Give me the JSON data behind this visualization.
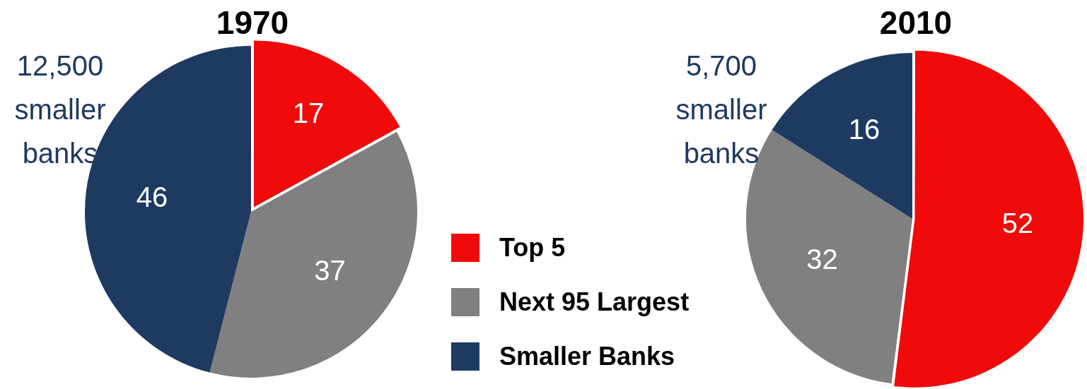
{
  "chart_data": [
    {
      "type": "pie",
      "title": "1970",
      "categories": [
        "Top 5",
        "Next 95 Largest",
        "Smaller Banks"
      ],
      "values": [
        17,
        37,
        46
      ],
      "colors": [
        "#f00a0a",
        "#808080",
        "#1f3a60"
      ],
      "data_labels": true,
      "legend": "right",
      "annotations": [
        "12,500 smaller banks"
      ]
    },
    {
      "type": "pie",
      "title": "2010",
      "categories": [
        null,
        null,
        null
      ],
      "values": [
        52,
        32,
        16
      ],
      "colors": [
        "#f00a0a",
        "#808080",
        "#1f3a60"
      ],
      "data_labels": true,
      "annotations": [
        "5,700 smaller banks"
      ]
    }
  ]
}
